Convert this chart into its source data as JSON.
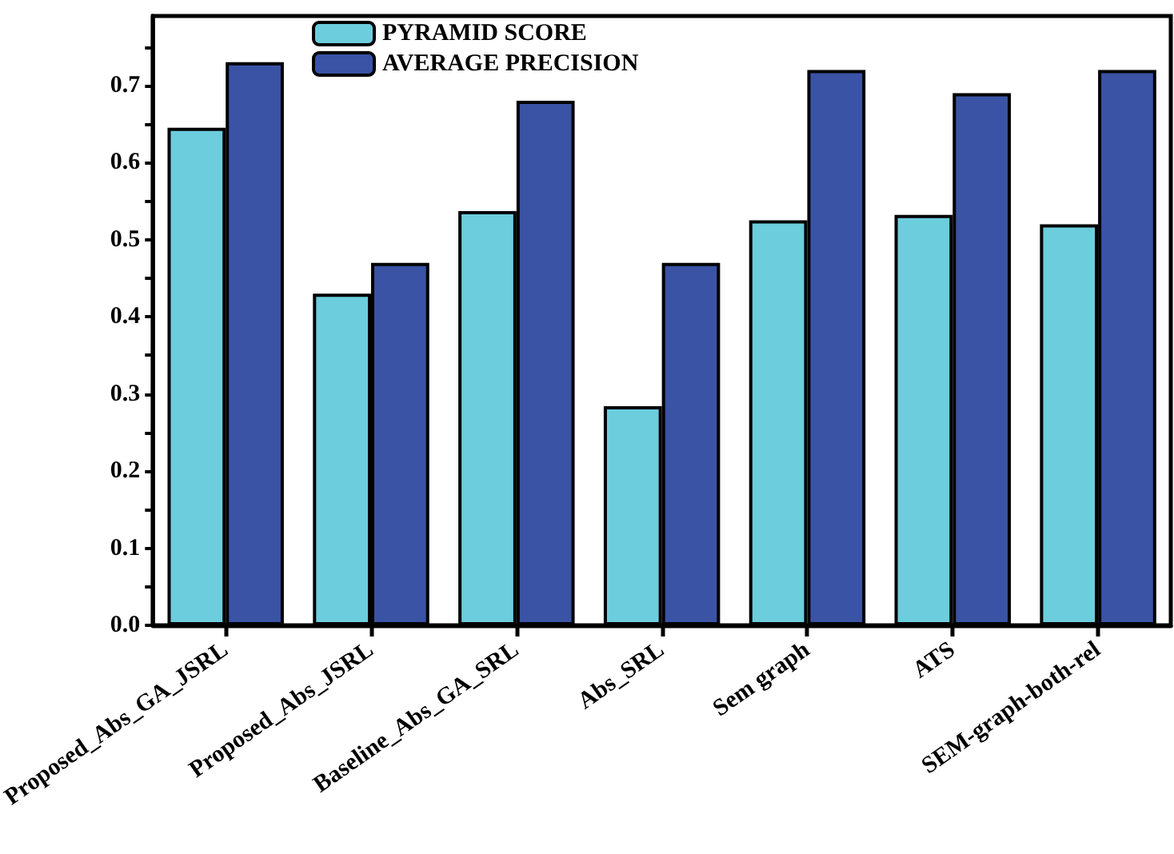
{
  "chart_data": {
    "type": "bar",
    "categories": [
      "Proposed_Abs_GA_JSRL",
      "Proposed_Abs_JSRL",
      "Baseline_Abs_GA_SRL",
      "Abs_SRL",
      "Sem graph",
      "ATS",
      "SEM-graph-both-rel"
    ],
    "series": [
      {
        "name": "PYRAMID SCORE",
        "color": "#6ccddd",
        "values": [
          0.645,
          0.43,
          0.537,
          0.284,
          0.525,
          0.532,
          0.52
        ]
      },
      {
        "name": "AVERAGE PRECISION",
        "color": "#3a53a4",
        "values": [
          0.73,
          0.47,
          0.68,
          0.47,
          0.72,
          0.69,
          0.72
        ]
      }
    ],
    "ylim": [
      0,
      0.79
    ],
    "yticks": [
      {
        "value": 0,
        "label": "0.0"
      },
      {
        "value": 0.05,
        "label": null
      },
      {
        "value": 0.1,
        "label": "0.1"
      },
      {
        "value": 0.15,
        "label": null
      },
      {
        "value": 0.2,
        "label": "0.2"
      },
      {
        "value": 0.25,
        "label": null
      },
      {
        "value": 0.3,
        "label": "0.3"
      },
      {
        "value": 0.35,
        "label": null
      },
      {
        "value": 0.4,
        "label": "0.4"
      },
      {
        "value": 0.45,
        "label": null
      },
      {
        "value": 0.5,
        "label": "0.5"
      },
      {
        "value": 0.55,
        "label": null
      },
      {
        "value": 0.6,
        "label": "0.6"
      },
      {
        "value": 0.65,
        "label": null
      },
      {
        "value": 0.7,
        "label": "0.7"
      },
      {
        "value": 0.75,
        "label": null
      }
    ],
    "grid": false,
    "legend": "top"
  }
}
